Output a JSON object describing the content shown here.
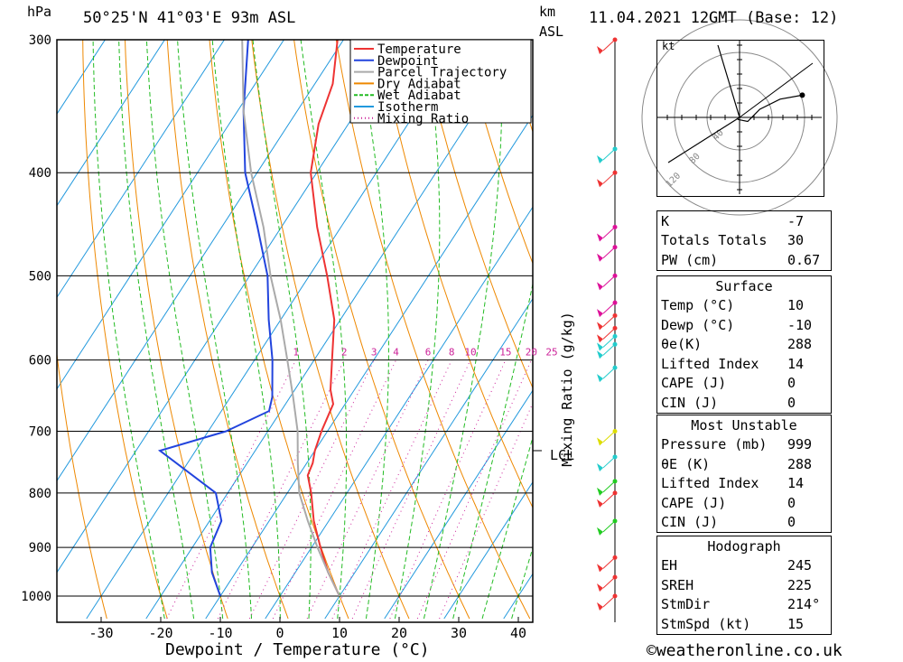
{
  "header": {
    "location": "50°25'N 41°03'E 93m ASL",
    "datetime": "11.04.2021 12GMT (Base: 12)",
    "hpa_label": "hPa",
    "km_label": "km",
    "asl_label": "ASL"
  },
  "footer": {
    "credit": "©weatheronline.co.uk"
  },
  "chart_data": {
    "type": "line",
    "subtype": "skew-t log-p",
    "xlabel": "Dewpoint / Temperature (°C)",
    "ylabel": "hPa",
    "x_ticks": [
      -30,
      -20,
      -10,
      0,
      10,
      20,
      30,
      40
    ],
    "pressure_levels": [
      300,
      400,
      500,
      600,
      700,
      800,
      900,
      1000
    ],
    "xlim_at_1000hPa": [
      -38,
      42
    ],
    "ylim": [
      1050,
      300
    ],
    "legend": {
      "position": "top-right",
      "entries": [
        {
          "name": "Temperature",
          "color": "#ee3333"
        },
        {
          "name": "Dewpoint",
          "color": "#2244dd"
        },
        {
          "name": "Parcel Trajectory",
          "color": "#aaaaaa"
        },
        {
          "name": "Dry Adiabat",
          "color": "#ee8800"
        },
        {
          "name": "Wet Adiabat",
          "color": "#22bb22"
        },
        {
          "name": "Isotherm",
          "color": "#2299dd"
        },
        {
          "name": "Mixing Ratio",
          "color": "#cc2299"
        }
      ]
    },
    "series": [
      {
        "name": "Temperature",
        "color": "#ee3333",
        "points": [
          [
            1000,
            10
          ],
          [
            950,
            5.5
          ],
          [
            900,
            1.5
          ],
          [
            850,
            -2.5
          ],
          [
            800,
            -6
          ],
          [
            770,
            -8.5
          ],
          [
            750,
            -9
          ],
          [
            730,
            -10
          ],
          [
            700,
            -11
          ],
          [
            680,
            -11.5
          ],
          [
            660,
            -12
          ],
          [
            640,
            -14
          ],
          [
            600,
            -17
          ],
          [
            550,
            -21
          ],
          [
            500,
            -27
          ],
          [
            450,
            -34
          ],
          [
            400,
            -41
          ],
          [
            360,
            -45
          ],
          [
            330,
            -47
          ],
          [
            300,
            -51
          ]
        ]
      },
      {
        "name": "Dewpoint",
        "color": "#2244dd",
        "points": [
          [
            1000,
            -10
          ],
          [
            950,
            -14
          ],
          [
            900,
            -17
          ],
          [
            850,
            -18
          ],
          [
            800,
            -22
          ],
          [
            730,
            -36
          ],
          [
            700,
            -27
          ],
          [
            670,
            -22
          ],
          [
            650,
            -23
          ],
          [
            600,
            -27
          ],
          [
            550,
            -32
          ],
          [
            500,
            -37
          ],
          [
            450,
            -44
          ],
          [
            400,
            -52
          ],
          [
            350,
            -59
          ],
          [
            300,
            -66
          ]
        ]
      },
      {
        "name": "Parcel Trajectory",
        "color": "#aaaaaa",
        "points": [
          [
            1000,
            10
          ],
          [
            950,
            5.5
          ],
          [
            900,
            1
          ],
          [
            850,
            -3.5
          ],
          [
            800,
            -8
          ],
          [
            750,
            -11.5
          ],
          [
            700,
            -15
          ],
          [
            650,
            -19.5
          ],
          [
            600,
            -24.5
          ],
          [
            550,
            -30
          ],
          [
            500,
            -36.5
          ],
          [
            450,
            -43
          ],
          [
            400,
            -51
          ],
          [
            350,
            -59
          ],
          [
            300,
            -67
          ]
        ]
      }
    ],
    "mixing_ratio_labels": [
      "1",
      "2",
      "3",
      "4",
      "6",
      "8",
      "10",
      "15",
      "20",
      "25"
    ],
    "mixing_ratio_values": [
      1,
      2,
      3,
      4,
      6,
      8,
      10,
      15,
      20,
      25
    ],
    "mixing_ratio_label_pressure": 600,
    "mixing_ratio_axis_label": "Mixing Ratio (g/kg)",
    "lcl_label": "LCL",
    "lcl_pressure": 730,
    "dry_adiabat_thetas_C": [
      -50,
      -40,
      -30,
      -20,
      -10,
      0,
      10,
      20,
      30,
      40,
      50,
      60,
      70,
      80,
      90,
      100,
      110,
      120,
      130
    ],
    "wet_adiabat_thetas_C": [
      -20,
      -15,
      -10,
      -5,
      0,
      5,
      10,
      15,
      20,
      25,
      30,
      35,
      40
    ],
    "isotherms_C": [
      -110,
      -100,
      -90,
      -80,
      -70,
      -60,
      -50,
      -40,
      -30,
      -20,
      -10,
      0,
      10,
      20,
      30,
      40
    ]
  },
  "indices": {
    "rows": [
      {
        "k": "K",
        "v": "-7"
      },
      {
        "k": "Totals Totals",
        "v": "30"
      },
      {
        "k": "PW (cm)",
        "v": "0.67"
      }
    ],
    "surface": {
      "title": "Surface",
      "rows": [
        {
          "k": "Temp (°C)",
          "v": "10"
        },
        {
          "k": "Dewp (°C)",
          "v": "-10"
        },
        {
          "k": "θe(K)",
          "v": "288"
        },
        {
          "k": "Lifted Index",
          "v": "14"
        },
        {
          "k": "CAPE (J)",
          "v": "0"
        },
        {
          "k": "CIN (J)",
          "v": "0"
        }
      ]
    },
    "most_unstable": {
      "title": "Most Unstable",
      "rows": [
        {
          "k": "Pressure (mb)",
          "v": "999"
        },
        {
          "k": "θE (K)",
          "v": "288"
        },
        {
          "k": "Lifted Index",
          "v": "14"
        },
        {
          "k": "CAPE (J)",
          "v": "0"
        },
        {
          "k": "CIN (J)",
          "v": "0"
        }
      ]
    },
    "hodograph": {
      "title": "Hodograph",
      "rows": [
        {
          "k": "EH",
          "v": "245"
        },
        {
          "k": "SREH",
          "v": "225"
        },
        {
          "k": "StmDir",
          "v": "214°"
        },
        {
          "k": "StmSpd (kt)",
          "v": "15"
        }
      ]
    }
  },
  "hodograph_plot": {
    "unit_label": "kt",
    "ring_labels": [
      "40",
      "80",
      "120"
    ],
    "points_u_v": [
      [
        -2,
        -2
      ],
      [
        8,
        -4
      ],
      [
        20,
        8
      ],
      [
        40,
        18
      ],
      [
        62,
        22
      ]
    ]
  },
  "wind_profile": {
    "colors": {
      "low": "#ee3333",
      "mid": "#22cccc",
      "upper": "#dd1199",
      "yellow": "#dddd00",
      "green": "#22cc22",
      "purple": "#7711cc"
    },
    "dots_pressure": [
      300,
      380,
      400,
      450,
      470,
      500,
      530,
      545,
      560,
      570,
      580,
      610,
      700,
      740,
      780,
      800,
      850,
      920,
      960,
      1000
    ]
  }
}
